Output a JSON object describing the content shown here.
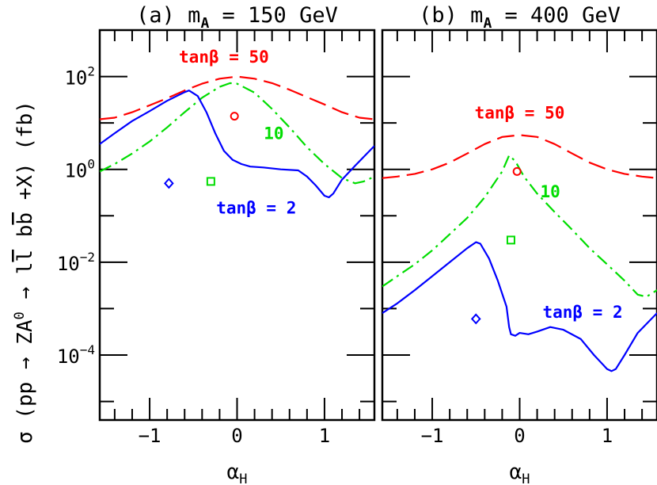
{
  "figure": {
    "ylabel_parts": [
      "σ",
      " (pp → ZA",
      "0",
      " → l",
      "l",
      " b",
      "b",
      " +X) (fb)"
    ],
    "xlabel_main": "α",
    "xlabel_sub": "H"
  },
  "colors": {
    "tan50": "#ff0000",
    "tan10": "#00dd00",
    "tan2": "#0000ff",
    "axis": "#000000"
  },
  "chart_data": [
    {
      "type": "line",
      "title_prefix": "(a) m",
      "title_sub": "A",
      "title_suffix": " = 150 GeV",
      "x_axis": {
        "range": [
          -1.571,
          1.571
        ],
        "ticks": [
          -1,
          0,
          1
        ],
        "tick_labels": [
          "−1",
          "0",
          "1"
        ]
      },
      "y_axis": {
        "scale": "log10",
        "range_log10": [
          -5.4,
          3.0
        ],
        "ticks_log10": [
          -4,
          -2,
          0,
          2
        ],
        "tick_labels": [
          {
            "base": "10",
            "exp": "−4"
          },
          {
            "base": "10",
            "exp": "−2"
          },
          {
            "base": "10",
            "exp": "0"
          },
          {
            "base": "10",
            "exp": "2"
          }
        ]
      },
      "series": [
        {
          "key": "tan50",
          "label": "tanβ = 50",
          "dash": "dashed",
          "x": [
            -1.571,
            -1.4,
            -1.2,
            -1.0,
            -0.8,
            -0.6,
            -0.4,
            -0.2,
            0.0,
            0.2,
            0.4,
            0.6,
            0.8,
            1.0,
            1.2,
            1.4,
            1.571
          ],
          "y": [
            12,
            13,
            17,
            24,
            34,
            50,
            70,
            90,
            100,
            90,
            72,
            52,
            36,
            25,
            17,
            13,
            12
          ]
        },
        {
          "key": "tan10",
          "label": "10",
          "dash": "dashdot",
          "x": [
            -1.571,
            -1.4,
            -1.2,
            -1.0,
            -0.8,
            -0.6,
            -0.4,
            -0.2,
            -0.08,
            0.0,
            0.2,
            0.4,
            0.6,
            0.8,
            1.0,
            1.2,
            1.35,
            1.45,
            1.571
          ],
          "y": [
            0.9,
            1.3,
            2.2,
            4.0,
            8.0,
            17,
            35,
            60,
            72,
            70,
            45,
            20,
            8.0,
            3.0,
            1.3,
            0.65,
            0.5,
            0.55,
            0.7
          ]
        },
        {
          "key": "tan2",
          "label": "tanβ = 2",
          "dash": "solid",
          "x": [
            -1.571,
            -1.4,
            -1.2,
            -1.0,
            -0.8,
            -0.6,
            -0.55,
            -0.45,
            -0.35,
            -0.25,
            -0.15,
            -0.05,
            0.05,
            0.15,
            0.3,
            0.5,
            0.7,
            0.8,
            0.9,
            1.0,
            1.05,
            1.1,
            1.2,
            1.35,
            1.571
          ],
          "y": [
            3.5,
            6.0,
            11,
            18,
            30,
            46,
            50,
            38,
            17,
            6.0,
            2.5,
            1.6,
            1.3,
            1.15,
            1.1,
            1.0,
            0.95,
            0.7,
            0.45,
            0.27,
            0.25,
            0.3,
            0.6,
            1.2,
            3.2
          ]
        }
      ],
      "markers": [
        {
          "key": "tan50",
          "shape": "circle",
          "x": -0.03,
          "y": 14
        },
        {
          "key": "tan10",
          "shape": "square",
          "x": -0.3,
          "y": 0.55
        },
        {
          "key": "tan2",
          "shape": "diamond",
          "x": -0.78,
          "y": 0.5
        }
      ],
      "annotations": [
        {
          "key": "tan50",
          "text": "tanβ = 50",
          "x": -0.15,
          "y_log10": 2.3
        },
        {
          "key": "tan10",
          "text": "10",
          "x": 0.42,
          "y_log10": 0.65
        },
        {
          "key": "tan2",
          "text": "tanβ = 2",
          "x": 0.22,
          "y_log10": -0.95
        }
      ]
    },
    {
      "type": "line",
      "title_prefix": "(b) m",
      "title_sub": "A",
      "title_suffix": " = 400 GeV",
      "x_axis": {
        "range": [
          -1.571,
          1.571
        ],
        "ticks": [
          -1,
          0,
          1
        ],
        "tick_labels": [
          "−1",
          "0",
          "1"
        ]
      },
      "y_axis": {
        "scale": "log10",
        "range_log10": [
          -5.4,
          3.0
        ],
        "ticks_log10": [
          -4,
          -2,
          0,
          2
        ],
        "tick_labels": []
      },
      "series": [
        {
          "key": "tan50",
          "label": "tanβ = 50",
          "dash": "dashed",
          "x": [
            -1.571,
            -1.4,
            -1.2,
            -1.0,
            -0.8,
            -0.6,
            -0.4,
            -0.2,
            0.0,
            0.2,
            0.4,
            0.6,
            0.8,
            1.0,
            1.2,
            1.4,
            1.571
          ],
          "y": [
            0.65,
            0.7,
            0.8,
            1.0,
            1.4,
            2.2,
            3.5,
            5.0,
            5.5,
            5.0,
            3.5,
            2.2,
            1.4,
            1.0,
            0.8,
            0.7,
            0.65
          ]
        },
        {
          "key": "tan10",
          "label": "10",
          "dash": "dashdot",
          "x": [
            -1.571,
            -1.4,
            -1.2,
            -1.0,
            -0.8,
            -0.6,
            -0.4,
            -0.2,
            -0.12,
            -0.05,
            0.05,
            0.2,
            0.4,
            0.6,
            0.8,
            1.0,
            1.2,
            1.35,
            1.45,
            1.571
          ],
          "y": [
            0.003,
            0.005,
            0.009,
            0.018,
            0.04,
            0.09,
            0.25,
            0.9,
            2.0,
            1.5,
            0.7,
            0.3,
            0.12,
            0.05,
            0.02,
            0.009,
            0.004,
            0.002,
            0.0018,
            0.0025
          ]
        },
        {
          "key": "tan2",
          "label": "tanβ = 2",
          "dash": "solid",
          "x": [
            -1.571,
            -1.4,
            -1.2,
            -1.0,
            -0.8,
            -0.6,
            -0.5,
            -0.45,
            -0.35,
            -0.25,
            -0.15,
            -0.12,
            -0.1,
            -0.05,
            0.0,
            0.1,
            0.2,
            0.35,
            0.5,
            0.7,
            0.85,
            1.0,
            1.05,
            1.1,
            1.2,
            1.35,
            1.571
          ],
          "y": [
            0.0008,
            0.0013,
            0.0025,
            0.005,
            0.01,
            0.02,
            0.027,
            0.025,
            0.012,
            0.004,
            0.0011,
            0.0004,
            0.00028,
            0.00026,
            0.0003,
            0.00028,
            0.00032,
            0.0004,
            0.00035,
            0.00022,
            0.0001,
            5e-05,
            4.5e-05,
            5e-05,
            0.0001,
            0.0003,
            0.0008
          ]
        }
      ],
      "markers": [
        {
          "key": "tan50",
          "shape": "circle",
          "x": -0.03,
          "y": 0.9
        },
        {
          "key": "tan10",
          "shape": "square",
          "x": -0.1,
          "y": 0.03
        },
        {
          "key": "tan2",
          "shape": "diamond",
          "x": -0.5,
          "y": 0.0006
        }
      ],
      "annotations": [
        {
          "key": "tan50",
          "text": "tanβ = 50",
          "x": 0.0,
          "y_log10": 1.1
        },
        {
          "key": "tan10",
          "text": "10",
          "x": 0.35,
          "y_log10": -0.6
        },
        {
          "key": "tan2",
          "text": "tanβ = 2",
          "x": 0.72,
          "y_log10": -3.2
        }
      ]
    }
  ]
}
